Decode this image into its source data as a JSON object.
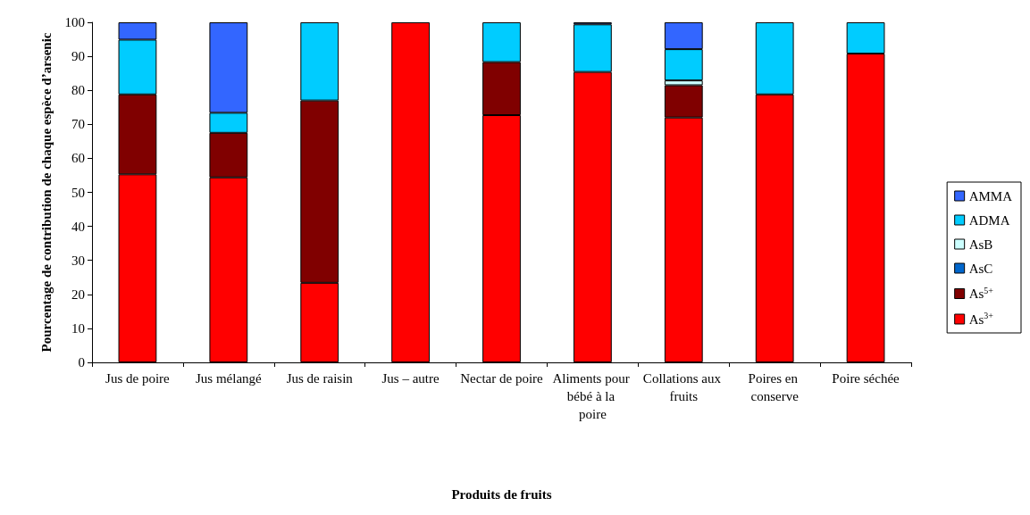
{
  "chart_data": {
    "type": "bar",
    "stacked": true,
    "xlabel": "Produits de fruits",
    "ylabel": "Pourcentage de contribution de chaque espèce d’arsenic",
    "categories": [
      "Jus de poire",
      "Jus mélangé",
      "Jus de raisin",
      "Jus – autre",
      "Nectar de poire",
      "Aliments pour bébé à la poire",
      "Collations aux fruits",
      "Poires en conserve",
      "Poire séchée"
    ],
    "series": [
      {
        "name": "As$^{3+}$",
        "color": "#ff0000",
        "values": [
          55.3,
          54.4,
          23.4,
          100,
          72.7,
          85.4,
          72.0,
          78.8,
          90.8
        ]
      },
      {
        "name": "As$^{5+}$",
        "color": "#800000",
        "values": [
          23.5,
          13.1,
          53.6,
          null,
          15.6,
          null,
          9.5,
          null,
          null
        ]
      },
      {
        "name": "AsC",
        "color": "#0066cc",
        "values": [
          null,
          null,
          null,
          null,
          null,
          null,
          null,
          null,
          null
        ]
      },
      {
        "name": "AsB",
        "color": "#ccffff",
        "values": [
          null,
          null,
          null,
          null,
          null,
          null,
          1.4,
          null,
          null
        ]
      },
      {
        "name": "ADMA",
        "color": "#00ccff",
        "values": [
          16.1,
          5.9,
          23.0,
          null,
          11.7,
          14.0,
          9.2,
          21.2,
          9.2
        ]
      },
      {
        "name": "AMMA",
        "color": "#3366ff",
        "values": [
          5.1,
          26.6,
          null,
          null,
          null,
          0.6,
          7.9,
          null,
          null
        ]
      }
    ],
    "ylim": [
      0,
      100
    ],
    "yticks": [
      0,
      10,
      20,
      30,
      40,
      50,
      60,
      70,
      80,
      90,
      100
    ],
    "legend": "right",
    "grid": false
  }
}
